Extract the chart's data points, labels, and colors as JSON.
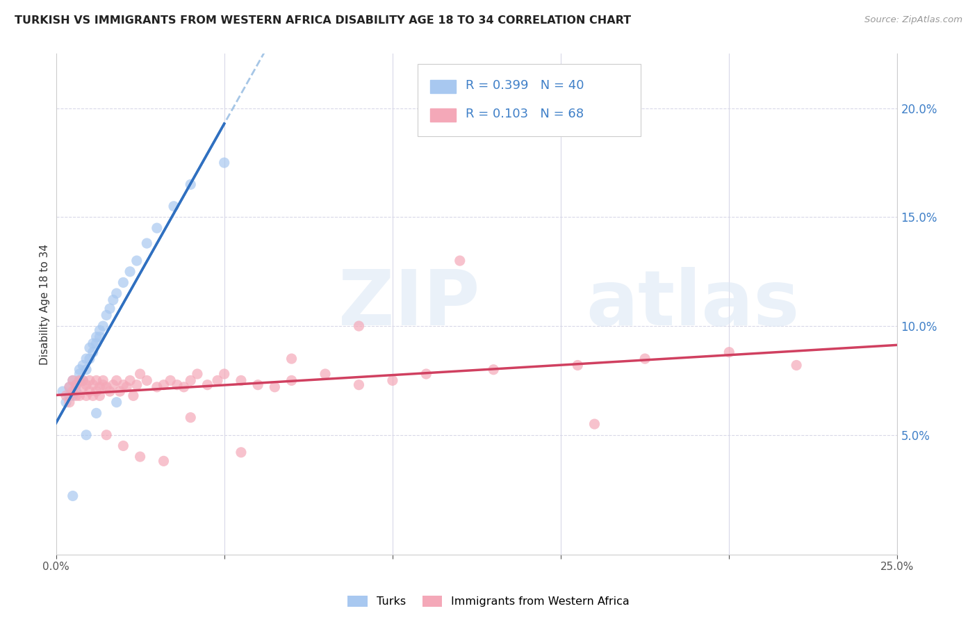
{
  "title": "TURKISH VS IMMIGRANTS FROM WESTERN AFRICA DISABILITY AGE 18 TO 34 CORRELATION CHART",
  "source": "Source: ZipAtlas.com",
  "ylabel": "Disability Age 18 to 34",
  "xlim": [
    0.0,
    0.25
  ],
  "ylim": [
    -0.005,
    0.225
  ],
  "legend_label1": "Turks",
  "legend_label2": "Immigrants from Western Africa",
  "R1": 0.399,
  "N1": 40,
  "R2": 0.103,
  "N2": 68,
  "color_blue": "#a8c8f0",
  "color_pink": "#f4a8b8",
  "color_blue_line": "#3070c0",
  "color_pink_line": "#d04060",
  "color_dashed": "#90b8e0",
  "color_blue_text": "#4080c8",
  "turks_x": [
    0.002,
    0.003,
    0.004,
    0.004,
    0.005,
    0.005,
    0.006,
    0.006,
    0.007,
    0.007,
    0.007,
    0.008,
    0.008,
    0.009,
    0.009,
    0.01,
    0.01,
    0.011,
    0.011,
    0.012,
    0.012,
    0.013,
    0.013,
    0.014,
    0.015,
    0.016,
    0.017,
    0.018,
    0.02,
    0.022,
    0.024,
    0.027,
    0.03,
    0.035,
    0.04,
    0.05,
    0.005,
    0.009,
    0.012,
    0.018
  ],
  "turks_y": [
    0.07,
    0.065,
    0.068,
    0.072,
    0.075,
    0.068,
    0.07,
    0.073,
    0.075,
    0.078,
    0.08,
    0.082,
    0.075,
    0.085,
    0.08,
    0.09,
    0.085,
    0.092,
    0.088,
    0.095,
    0.092,
    0.098,
    0.095,
    0.1,
    0.105,
    0.108,
    0.112,
    0.115,
    0.12,
    0.125,
    0.13,
    0.138,
    0.145,
    0.155,
    0.165,
    0.175,
    0.022,
    0.05,
    0.06,
    0.065
  ],
  "wa_x": [
    0.003,
    0.004,
    0.004,
    0.005,
    0.005,
    0.006,
    0.006,
    0.007,
    0.007,
    0.008,
    0.008,
    0.009,
    0.009,
    0.01,
    0.01,
    0.011,
    0.011,
    0.012,
    0.012,
    0.013,
    0.013,
    0.014,
    0.014,
    0.015,
    0.016,
    0.017,
    0.018,
    0.019,
    0.02,
    0.021,
    0.022,
    0.023,
    0.024,
    0.025,
    0.027,
    0.03,
    0.032,
    0.034,
    0.036,
    0.038,
    0.04,
    0.042,
    0.045,
    0.048,
    0.05,
    0.055,
    0.06,
    0.065,
    0.07,
    0.08,
    0.09,
    0.1,
    0.11,
    0.13,
    0.155,
    0.175,
    0.2,
    0.22,
    0.015,
    0.02,
    0.025,
    0.032,
    0.04,
    0.055,
    0.07,
    0.09,
    0.12,
    0.16
  ],
  "wa_y": [
    0.068,
    0.072,
    0.065,
    0.07,
    0.075,
    0.068,
    0.073,
    0.075,
    0.068,
    0.072,
    0.075,
    0.068,
    0.073,
    0.075,
    0.07,
    0.068,
    0.073,
    0.075,
    0.07,
    0.072,
    0.068,
    0.073,
    0.075,
    0.072,
    0.07,
    0.073,
    0.075,
    0.07,
    0.073,
    0.072,
    0.075,
    0.068,
    0.073,
    0.078,
    0.075,
    0.072,
    0.073,
    0.075,
    0.073,
    0.072,
    0.075,
    0.078,
    0.073,
    0.075,
    0.078,
    0.075,
    0.073,
    0.072,
    0.075,
    0.078,
    0.073,
    0.075,
    0.078,
    0.08,
    0.082,
    0.085,
    0.088,
    0.082,
    0.05,
    0.045,
    0.04,
    0.038,
    0.058,
    0.042,
    0.085,
    0.1,
    0.13,
    0.055
  ],
  "grid_color": "#d8d8e8",
  "grid_style": "--"
}
